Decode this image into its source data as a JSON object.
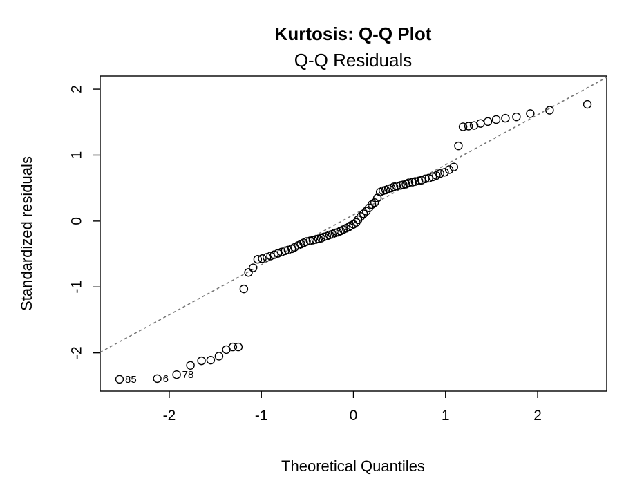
{
  "chart_data": {
    "type": "scatter",
    "title": "Kurtosis: Q-Q Plot",
    "subtitle": "Q-Q Residuals",
    "xlabel": "Theoretical Quantiles",
    "ylabel": "Standardized residuals",
    "xlim": [
      -2.75,
      2.75
    ],
    "ylim": [
      -2.58,
      2.2
    ],
    "xticks": [
      -2,
      -1,
      0,
      1,
      2
    ],
    "yticks": [
      -2,
      -1,
      0,
      1,
      2
    ],
    "grid": false,
    "reference_line": {
      "style": "dashed",
      "points": [
        [
          -2.75,
          -1.99
        ],
        [
          2.75,
          2.18
        ]
      ]
    },
    "points": [
      [
        -2.54,
        -2.4
      ],
      [
        -2.13,
        -2.39
      ],
      [
        -1.92,
        -2.33
      ],
      [
        -1.77,
        -2.19
      ],
      [
        -1.65,
        -2.12
      ],
      [
        -1.55,
        -2.11
      ],
      [
        -1.46,
        -2.05
      ],
      [
        -1.38,
        -1.95
      ],
      [
        -1.31,
        -1.91
      ],
      [
        -1.25,
        -1.91
      ],
      [
        -1.19,
        -1.03
      ],
      [
        -1.14,
        -0.78
      ],
      [
        -1.09,
        -0.71
      ],
      [
        -1.04,
        -0.58
      ],
      [
        -0.99,
        -0.57
      ],
      [
        -0.94,
        -0.55
      ],
      [
        -0.9,
        -0.53
      ],
      [
        -0.86,
        -0.51
      ],
      [
        -0.82,
        -0.49
      ],
      [
        -0.78,
        -0.47
      ],
      [
        -0.74,
        -0.45
      ],
      [
        -0.71,
        -0.44
      ],
      [
        -0.67,
        -0.42
      ],
      [
        -0.64,
        -0.4
      ],
      [
        -0.6,
        -0.37
      ],
      [
        -0.57,
        -0.35
      ],
      [
        -0.54,
        -0.33
      ],
      [
        -0.51,
        -0.31
      ],
      [
        -0.47,
        -0.3
      ],
      [
        -0.44,
        -0.29
      ],
      [
        -0.41,
        -0.28
      ],
      [
        -0.38,
        -0.27
      ],
      [
        -0.35,
        -0.26
      ],
      [
        -0.32,
        -0.24
      ],
      [
        -0.29,
        -0.23
      ],
      [
        -0.26,
        -0.21
      ],
      [
        -0.23,
        -0.2
      ],
      [
        -0.2,
        -0.18
      ],
      [
        -0.17,
        -0.17
      ],
      [
        -0.14,
        -0.15
      ],
      [
        -0.11,
        -0.13
      ],
      [
        -0.08,
        -0.11
      ],
      [
        -0.05,
        -0.09
      ],
      [
        -0.03,
        -0.07
      ],
      [
        0.0,
        -0.05
      ],
      [
        0.03,
        -0.02
      ],
      [
        0.05,
        0.02
      ],
      [
        0.08,
        0.07
      ],
      [
        0.11,
        0.11
      ],
      [
        0.14,
        0.15
      ],
      [
        0.17,
        0.2
      ],
      [
        0.2,
        0.25
      ],
      [
        0.23,
        0.28
      ],
      [
        0.26,
        0.35
      ],
      [
        0.29,
        0.44
      ],
      [
        0.32,
        0.46
      ],
      [
        0.35,
        0.47
      ],
      [
        0.38,
        0.49
      ],
      [
        0.41,
        0.5
      ],
      [
        0.44,
        0.52
      ],
      [
        0.47,
        0.53
      ],
      [
        0.51,
        0.54
      ],
      [
        0.54,
        0.55
      ],
      [
        0.57,
        0.56
      ],
      [
        0.6,
        0.58
      ],
      [
        0.64,
        0.59
      ],
      [
        0.67,
        0.6
      ],
      [
        0.71,
        0.61
      ],
      [
        0.74,
        0.62
      ],
      [
        0.78,
        0.64
      ],
      [
        0.82,
        0.65
      ],
      [
        0.86,
        0.67
      ],
      [
        0.9,
        0.69
      ],
      [
        0.94,
        0.72
      ],
      [
        0.99,
        0.74
      ],
      [
        1.04,
        0.78
      ],
      [
        1.09,
        0.82
      ],
      [
        1.14,
        1.14
      ],
      [
        1.19,
        1.43
      ],
      [
        1.25,
        1.44
      ],
      [
        1.31,
        1.45
      ],
      [
        1.38,
        1.48
      ],
      [
        1.46,
        1.51
      ],
      [
        1.55,
        1.54
      ],
      [
        1.65,
        1.56
      ],
      [
        1.77,
        1.58
      ],
      [
        1.92,
        1.63
      ],
      [
        2.13,
        1.68
      ],
      [
        2.54,
        1.77
      ]
    ],
    "labeled_points": [
      {
        "label": "85",
        "x": -2.54,
        "y": -2.4
      },
      {
        "label": "6",
        "x": -2.13,
        "y": -2.39
      },
      {
        "label": "78",
        "x": -1.92,
        "y": -2.33
      }
    ]
  }
}
